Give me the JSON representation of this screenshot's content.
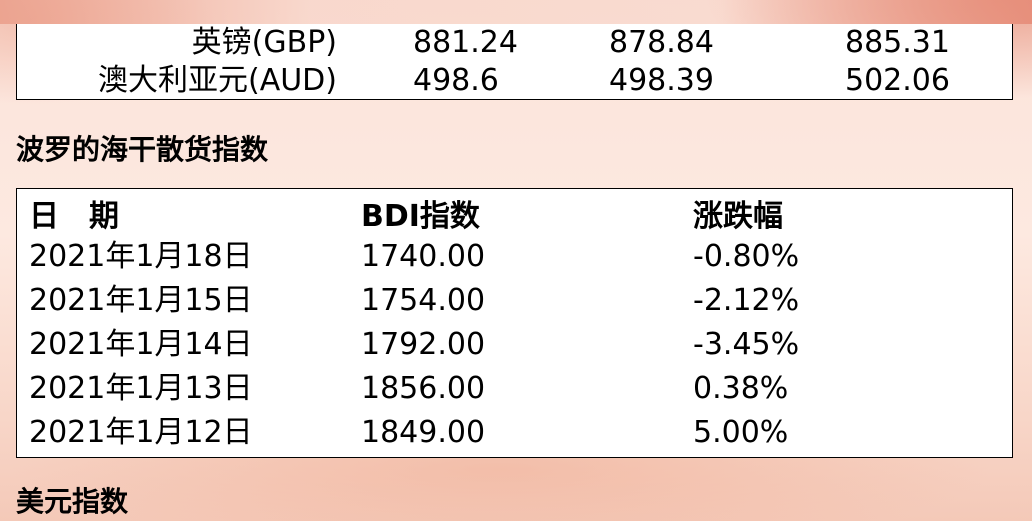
{
  "currency_rows": [
    {
      "name": "英镑(GBP)",
      "v1": "881.24",
      "v2": "878.84",
      "v3": "885.31"
    },
    {
      "name": "澳大利亚元(AUD)",
      "v1": "498.6",
      "v2": "498.39",
      "v3": "502.06"
    }
  ],
  "bdi_section": {
    "title": "波罗的海干散货指数",
    "headers": {
      "date": "日　期",
      "bdi": "BDI指数",
      "change": "涨跌幅"
    },
    "rows": [
      {
        "date": "2021年1月18日",
        "bdi": "1740.00",
        "change": "-0.80%"
      },
      {
        "date": "2021年1月15日",
        "bdi": "1754.00",
        "change": "-2.12%"
      },
      {
        "date": "2021年1月14日",
        "bdi": "1792.00",
        "change": "-3.45%"
      },
      {
        "date": "2021年1月13日",
        "bdi": "1856.00",
        "change": "0.38%"
      },
      {
        "date": "2021年1月12日",
        "bdi": "1849.00",
        "change": "5.00%"
      }
    ]
  },
  "usd_section": {
    "title": "美元指数"
  }
}
